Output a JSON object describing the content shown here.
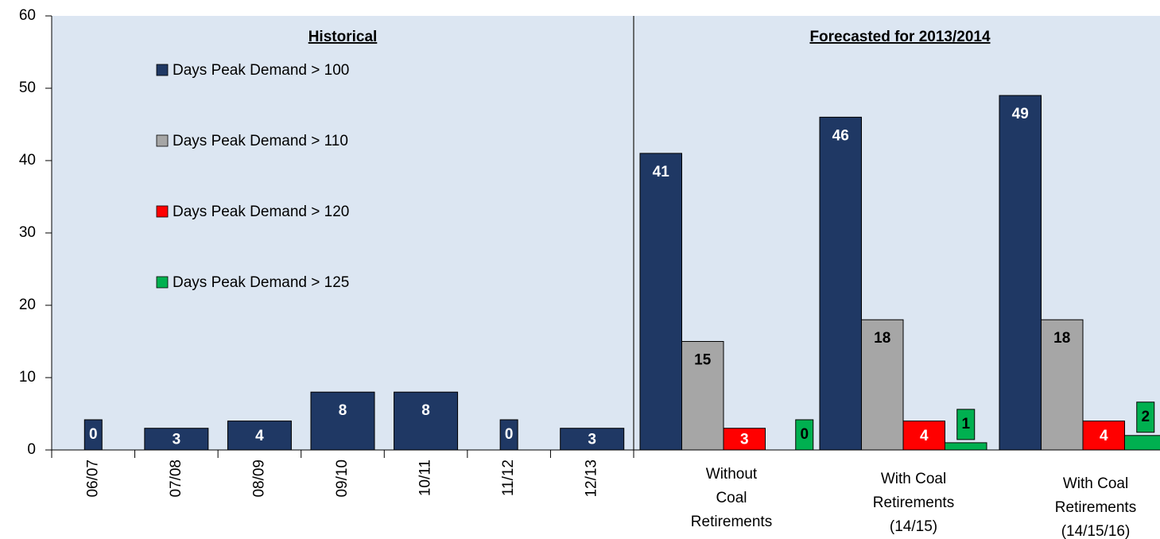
{
  "chart_data": [
    {
      "type": "bar",
      "title": "Historical",
      "categories": [
        "06/07",
        "07/08",
        "08/09",
        "09/10",
        "10/11",
        "11/12",
        "12/13"
      ],
      "values": [
        0,
        3,
        4,
        8,
        8,
        0,
        3
      ],
      "color": "#1f3864",
      "ylim": [
        0,
        60
      ],
      "yticks": [
        0,
        10,
        20,
        30,
        40,
        50,
        60
      ]
    },
    {
      "type": "grouped-bar",
      "title": "Forecasted for 2013/2014",
      "categories": [
        [
          "Without",
          "Coal",
          "Retirements"
        ],
        [
          "With Coal",
          "Retirements",
          "(14/15)"
        ],
        [
          "With Coal",
          "Retirements",
          "(14/15/16)"
        ]
      ],
      "series": [
        {
          "name": "Days Peak Demand > 100",
          "color": "#1f3864",
          "values": [
            41,
            46,
            49
          ]
        },
        {
          "name": "Days Peak Demand > 110",
          "color": "#a6a6a6",
          "values": [
            15,
            18,
            18
          ]
        },
        {
          "name": "Days Peak Demand > 120",
          "color": "#ff0000",
          "values": [
            3,
            4,
            4
          ]
        },
        {
          "name": "Days Peak Demand > 125",
          "color": "#00b050",
          "values": [
            0,
            1,
            2
          ]
        }
      ],
      "ylim": [
        0,
        60
      ]
    }
  ]
}
